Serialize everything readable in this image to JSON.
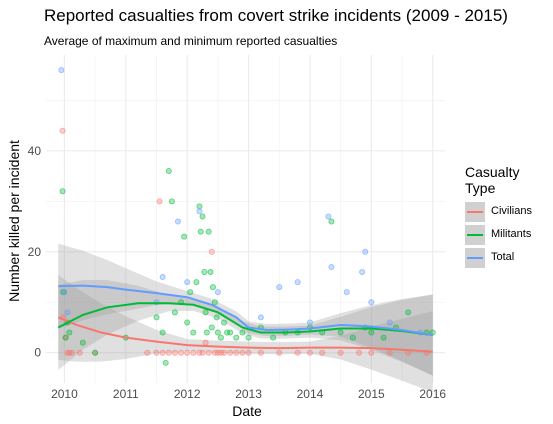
{
  "chart_data": {
    "type": "scatter",
    "title": "Reported casualties from covert strike incidents (2009 - 2015)",
    "subtitle": "Average of maximum and minimum reported casualties",
    "xlabel": "Date",
    "ylabel": "Number killed per incident",
    "xlim": [
      2009.7,
      2016.2
    ],
    "ylim": [
      -6,
      59
    ],
    "x_ticks": [
      2010,
      2011,
      2012,
      2013,
      2014,
      2015,
      2016
    ],
    "y_ticks": [
      0,
      20,
      40
    ],
    "grid": true,
    "legend": {
      "title_line1": "Casualty",
      "title_line2": "Type",
      "position": "right"
    },
    "series": [
      {
        "name": "Civilians",
        "color": "#F8766D",
        "points": [
          [
            2009.97,
            44
          ],
          [
            2009.98,
            7
          ],
          [
            2010.02,
            3
          ],
          [
            2010.05,
            0
          ],
          [
            2010.08,
            0
          ],
          [
            2010.12,
            0
          ],
          [
            2010.25,
            0
          ],
          [
            2010.5,
            0
          ],
          [
            2011.35,
            0
          ],
          [
            2011.5,
            0
          ],
          [
            2011.55,
            30
          ],
          [
            2011.6,
            0
          ],
          [
            2011.7,
            0
          ],
          [
            2011.8,
            0
          ],
          [
            2011.9,
            0
          ],
          [
            2012.0,
            0
          ],
          [
            2012.1,
            0
          ],
          [
            2012.2,
            0
          ],
          [
            2012.25,
            0
          ],
          [
            2012.3,
            2
          ],
          [
            2012.35,
            0
          ],
          [
            2012.4,
            20
          ],
          [
            2012.45,
            0
          ],
          [
            2012.5,
            0
          ],
          [
            2012.55,
            0
          ],
          [
            2012.6,
            0
          ],
          [
            2012.7,
            0
          ],
          [
            2012.8,
            0
          ],
          [
            2012.9,
            0
          ],
          [
            2013.0,
            0
          ],
          [
            2013.2,
            0
          ],
          [
            2013.5,
            0
          ],
          [
            2013.8,
            0
          ],
          [
            2014.0,
            0
          ],
          [
            2014.2,
            0
          ],
          [
            2014.5,
            0
          ],
          [
            2014.8,
            0
          ],
          [
            2015.0,
            0
          ],
          [
            2015.3,
            0
          ],
          [
            2015.6,
            0
          ],
          [
            2015.9,
            0
          ]
        ],
        "trend": [
          [
            2009.9,
            7
          ],
          [
            2010.2,
            5.5
          ],
          [
            2010.6,
            4
          ],
          [
            2011.0,
            3
          ],
          [
            2011.5,
            2.2
          ],
          [
            2012.0,
            1.5
          ],
          [
            2012.5,
            1.2
          ],
          [
            2013.0,
            1.0
          ],
          [
            2013.5,
            0.9
          ],
          [
            2014.0,
            1.0
          ],
          [
            2014.5,
            1.0
          ],
          [
            2015.0,
            0.9
          ],
          [
            2015.5,
            0.6
          ],
          [
            2016.0,
            0.2
          ]
        ]
      },
      {
        "name": "Militants",
        "color": "#00BA38",
        "points": [
          [
            2009.97,
            32
          ],
          [
            2009.98,
            12
          ],
          [
            2010.02,
            3
          ],
          [
            2010.05,
            6
          ],
          [
            2010.08,
            4
          ],
          [
            2010.3,
            2
          ],
          [
            2010.5,
            0
          ],
          [
            2011.0,
            3
          ],
          [
            2011.5,
            7
          ],
          [
            2011.6,
            4
          ],
          [
            2011.65,
            -2
          ],
          [
            2011.7,
            36
          ],
          [
            2011.75,
            30
          ],
          [
            2011.8,
            8
          ],
          [
            2011.9,
            10
          ],
          [
            2011.95,
            23
          ],
          [
            2012.0,
            6
          ],
          [
            2012.05,
            12
          ],
          [
            2012.1,
            4
          ],
          [
            2012.15,
            14
          ],
          [
            2012.2,
            29
          ],
          [
            2012.22,
            24
          ],
          [
            2012.25,
            27
          ],
          [
            2012.28,
            16
          ],
          [
            2012.3,
            8
          ],
          [
            2012.32,
            4
          ],
          [
            2012.35,
            24
          ],
          [
            2012.38,
            16
          ],
          [
            2012.4,
            5
          ],
          [
            2012.42,
            13
          ],
          [
            2012.45,
            10
          ],
          [
            2012.48,
            7
          ],
          [
            2012.5,
            4
          ],
          [
            2012.55,
            3
          ],
          [
            2012.6,
            6
          ],
          [
            2012.65,
            4
          ],
          [
            2012.7,
            4
          ],
          [
            2012.8,
            3
          ],
          [
            2012.9,
            4
          ],
          [
            2013.0,
            3
          ],
          [
            2013.2,
            5
          ],
          [
            2013.4,
            3
          ],
          [
            2013.6,
            4
          ],
          [
            2013.8,
            4
          ],
          [
            2014.0,
            5
          ],
          [
            2014.2,
            4
          ],
          [
            2014.35,
            26
          ],
          [
            2014.5,
            4
          ],
          [
            2014.7,
            3
          ],
          [
            2014.9,
            5
          ],
          [
            2015.0,
            4
          ],
          [
            2015.2,
            3
          ],
          [
            2015.4,
            5
          ],
          [
            2015.6,
            8
          ],
          [
            2015.9,
            4
          ],
          [
            2016.0,
            4
          ]
        ],
        "trend": [
          [
            2009.9,
            5
          ],
          [
            2010.3,
            7.5
          ],
          [
            2010.7,
            9
          ],
          [
            2011.2,
            9.8
          ],
          [
            2011.7,
            9.8
          ],
          [
            2012.1,
            9.5
          ],
          [
            2012.5,
            8
          ],
          [
            2012.9,
            5
          ],
          [
            2013.2,
            4
          ],
          [
            2013.6,
            4
          ],
          [
            2014.0,
            4.2
          ],
          [
            2014.5,
            4.8
          ],
          [
            2015.0,
            4.8
          ],
          [
            2015.5,
            4.3
          ],
          [
            2016.0,
            3.5
          ]
        ]
      },
      {
        "name": "Total",
        "color": "#619CFF",
        "points": [
          [
            2009.95,
            56
          ],
          [
            2010.0,
            12
          ],
          [
            2010.05,
            8
          ],
          [
            2011.5,
            10
          ],
          [
            2011.6,
            15
          ],
          [
            2011.85,
            26
          ],
          [
            2012.0,
            14
          ],
          [
            2012.2,
            28
          ],
          [
            2012.5,
            12
          ],
          [
            2013.2,
            7
          ],
          [
            2013.5,
            13
          ],
          [
            2013.8,
            14
          ],
          [
            2014.0,
            6
          ],
          [
            2014.3,
            27
          ],
          [
            2014.35,
            17
          ],
          [
            2014.6,
            12
          ],
          [
            2014.85,
            16
          ],
          [
            2014.9,
            20
          ],
          [
            2015.0,
            10
          ],
          [
            2015.3,
            6
          ],
          [
            2015.8,
            4
          ]
        ],
        "trend": [
          [
            2009.9,
            13.2
          ],
          [
            2010.3,
            13.3
          ],
          [
            2010.7,
            13
          ],
          [
            2011.0,
            12.5
          ],
          [
            2011.5,
            11.8
          ],
          [
            2012.0,
            11
          ],
          [
            2012.4,
            9.5
          ],
          [
            2012.8,
            7
          ],
          [
            2013.0,
            5
          ],
          [
            2013.3,
            4.5
          ],
          [
            2013.7,
            4.6
          ],
          [
            2014.0,
            4.8
          ],
          [
            2014.5,
            5.5
          ],
          [
            2015.0,
            5.2
          ],
          [
            2015.5,
            4.5
          ],
          [
            2016.0,
            3.5
          ]
        ]
      }
    ]
  }
}
